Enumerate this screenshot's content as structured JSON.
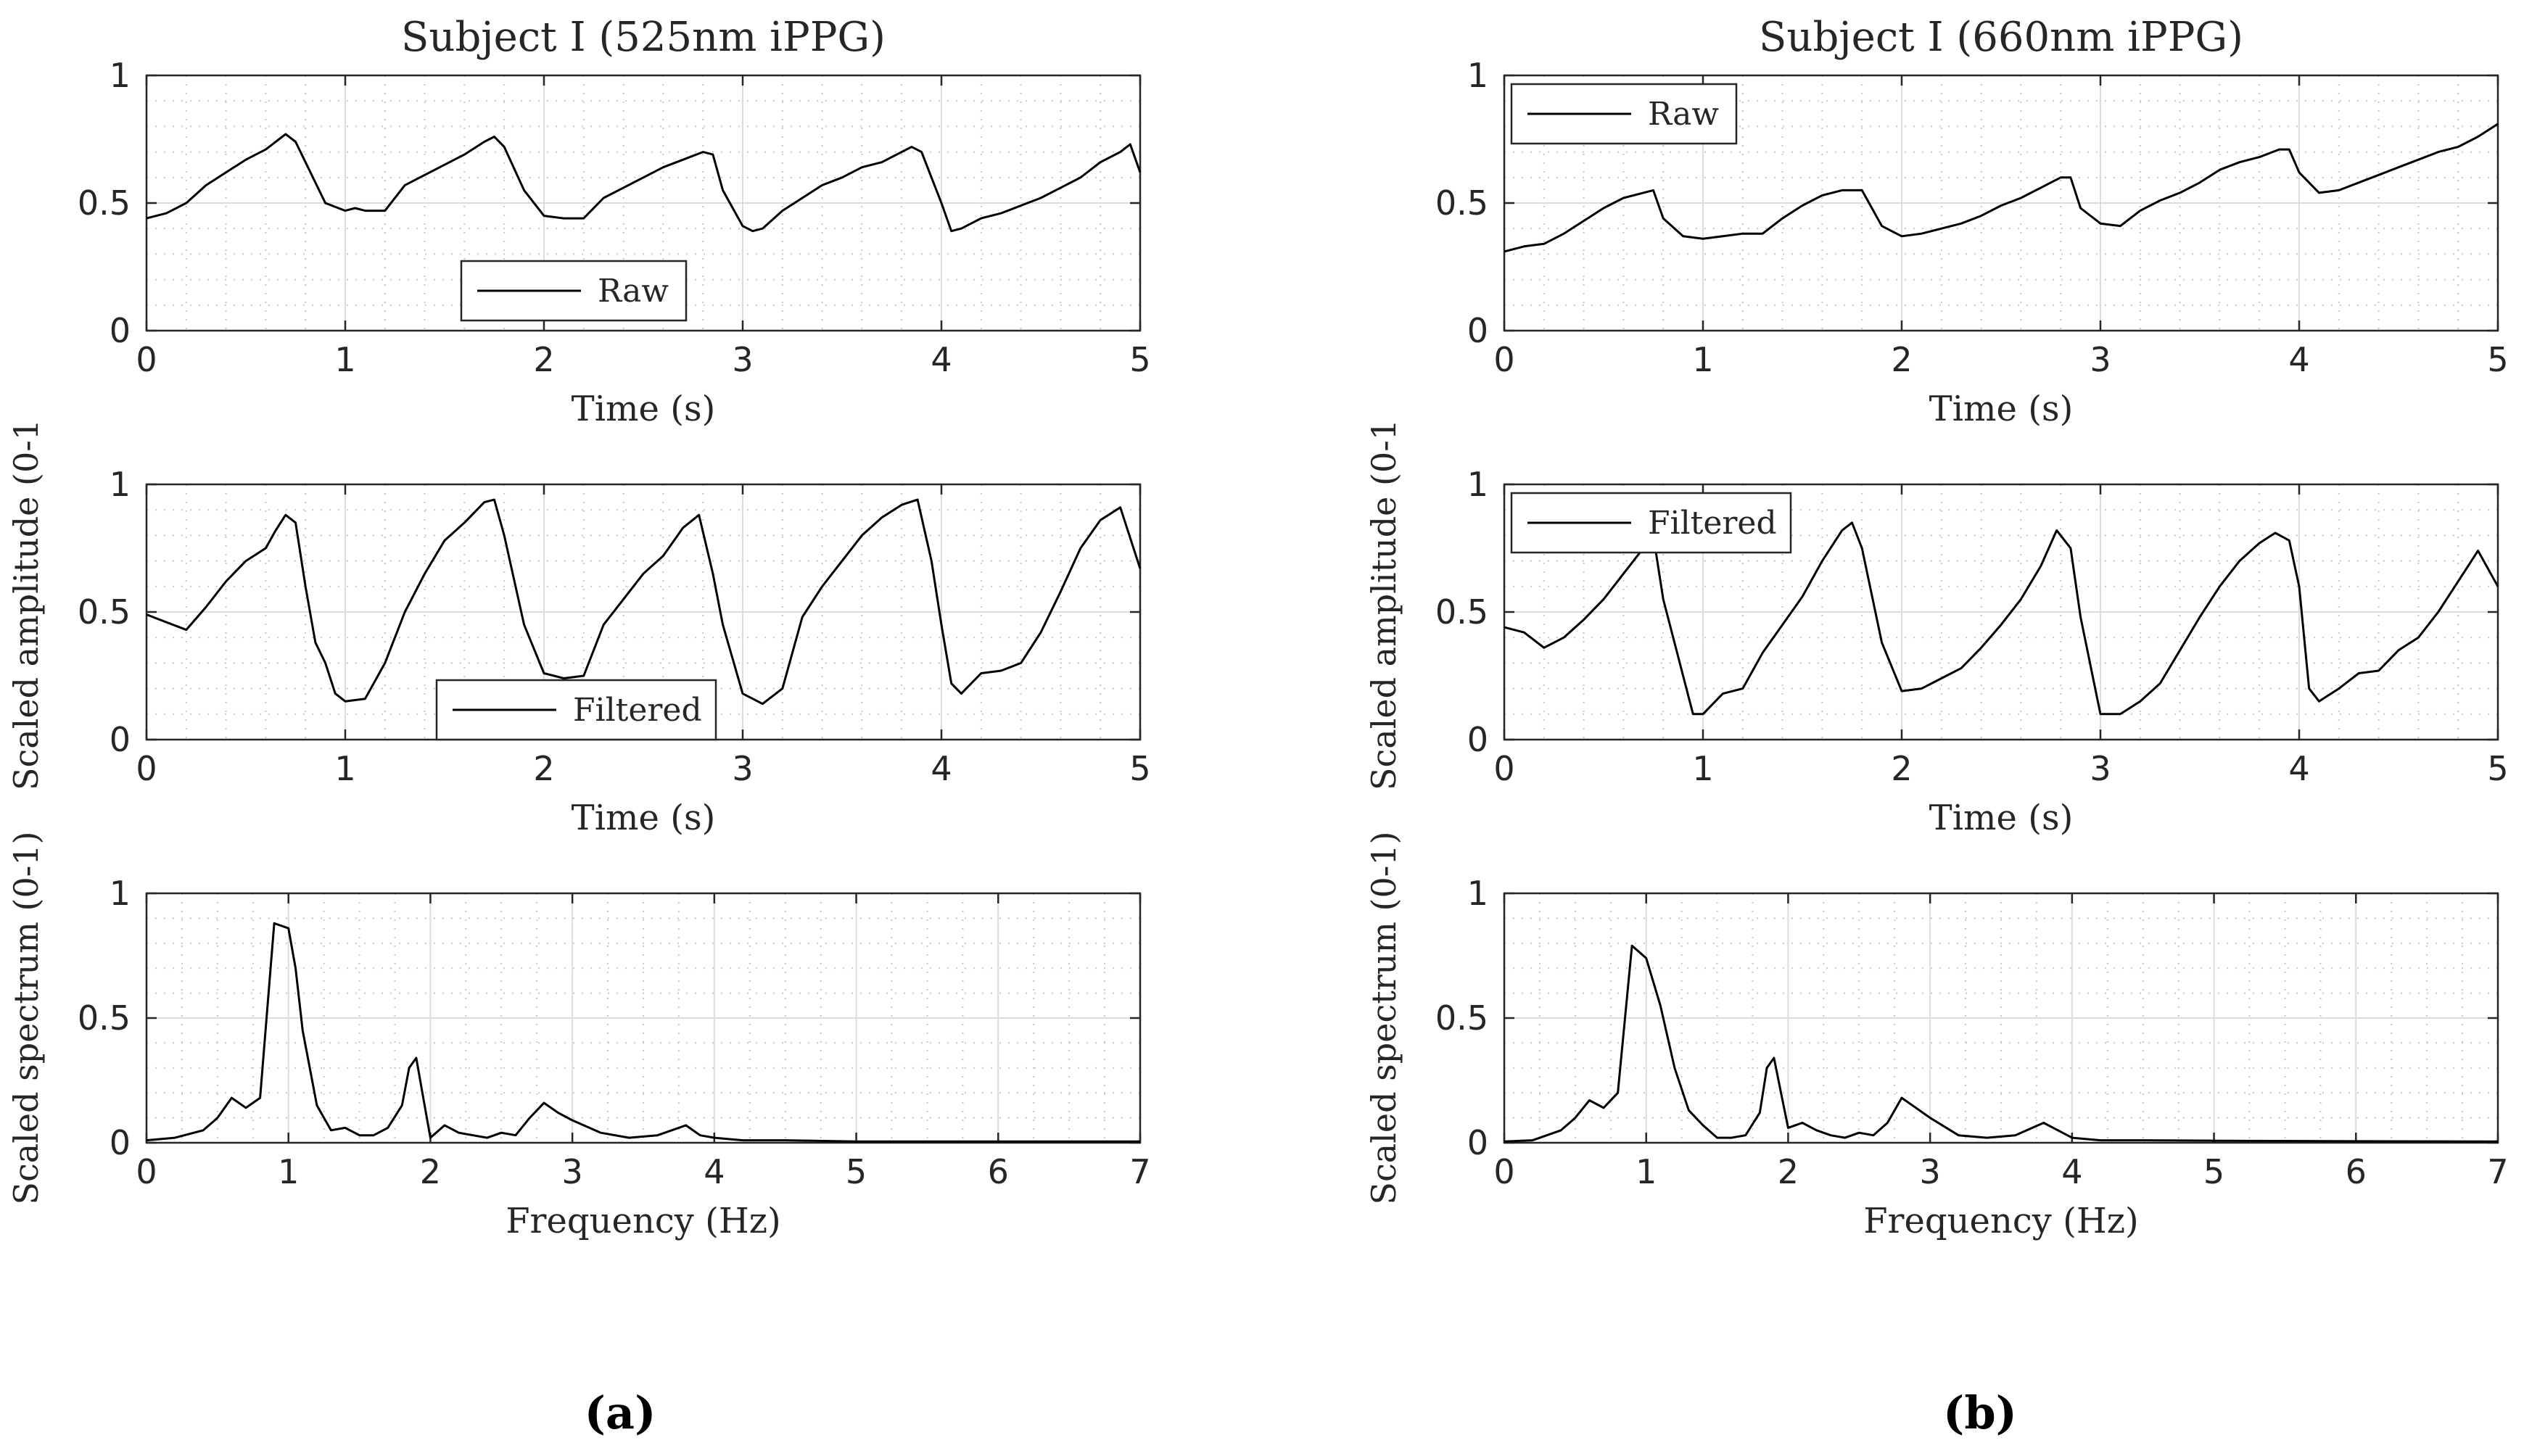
{
  "figure": {
    "caption_a": "(a)",
    "caption_b": "(b)"
  },
  "chart_data": [
    {
      "type": "line",
      "id": "a1",
      "title": "Subject I (525nm iPPG)",
      "xlabel": "Time (s)",
      "ylabel": "",
      "xlim": [
        0,
        5
      ],
      "ylim": [
        0,
        1
      ],
      "xticks": [
        0,
        1,
        2,
        3,
        4,
        5
      ],
      "xtick_labels": [
        "0",
        "1",
        "2",
        "3",
        "4",
        "5"
      ],
      "yticks": [
        0,
        0.5,
        1
      ],
      "ytick_labels": [
        "0",
        "0.5",
        "1"
      ],
      "grid": true,
      "legend": "Raw",
      "legend_position": "bottom-center",
      "series": [
        {
          "name": "Raw",
          "x": [
            0,
            0.1,
            0.2,
            0.3,
            0.4,
            0.5,
            0.6,
            0.7,
            0.75,
            0.8,
            0.9,
            1.0,
            1.05,
            1.1,
            1.2,
            1.3,
            1.4,
            1.5,
            1.6,
            1.7,
            1.75,
            1.8,
            1.9,
            2.0,
            2.1,
            2.2,
            2.3,
            2.4,
            2.5,
            2.6,
            2.7,
            2.8,
            2.85,
            2.9,
            3.0,
            3.05,
            3.1,
            3.2,
            3.3,
            3.4,
            3.5,
            3.6,
            3.7,
            3.8,
            3.85,
            3.9,
            4.0,
            4.05,
            4.1,
            4.2,
            4.3,
            4.4,
            4.5,
            4.6,
            4.7,
            4.8,
            4.9,
            4.95,
            5.0
          ],
          "y": [
            0.44,
            0.46,
            0.5,
            0.57,
            0.62,
            0.67,
            0.71,
            0.77,
            0.74,
            0.66,
            0.5,
            0.47,
            0.48,
            0.47,
            0.47,
            0.57,
            0.61,
            0.65,
            0.69,
            0.74,
            0.76,
            0.72,
            0.55,
            0.45,
            0.44,
            0.44,
            0.52,
            0.56,
            0.6,
            0.64,
            0.67,
            0.7,
            0.69,
            0.55,
            0.41,
            0.39,
            0.4,
            0.47,
            0.52,
            0.57,
            0.6,
            0.64,
            0.66,
            0.7,
            0.72,
            0.7,
            0.5,
            0.39,
            0.4,
            0.44,
            0.46,
            0.49,
            0.52,
            0.56,
            0.6,
            0.66,
            0.7,
            0.73,
            0.62
          ]
        }
      ]
    },
    {
      "type": "line",
      "id": "a2",
      "title": "",
      "xlabel": "Time (s)",
      "ylabel": "Scaled amplitude (0-1",
      "xlim": [
        0,
        5
      ],
      "ylim": [
        0,
        1
      ],
      "xticks": [
        0,
        1,
        2,
        3,
        4,
        5
      ],
      "xtick_labels": [
        "0",
        "1",
        "2",
        "3",
        "4",
        "5"
      ],
      "yticks": [
        0,
        0.5,
        1
      ],
      "ytick_labels": [
        "0",
        "0.5",
        "1"
      ],
      "grid": true,
      "legend": "Filtered",
      "legend_position": "bottom-center",
      "series": [
        {
          "name": "Filtered",
          "x": [
            0,
            0.1,
            0.2,
            0.3,
            0.4,
            0.5,
            0.6,
            0.65,
            0.7,
            0.75,
            0.8,
            0.85,
            0.9,
            0.95,
            1.0,
            1.1,
            1.2,
            1.3,
            1.4,
            1.5,
            1.6,
            1.7,
            1.75,
            1.8,
            1.9,
            2.0,
            2.1,
            2.2,
            2.3,
            2.4,
            2.5,
            2.6,
            2.7,
            2.78,
            2.85,
            2.9,
            3.0,
            3.1,
            3.2,
            3.3,
            3.4,
            3.5,
            3.6,
            3.7,
            3.8,
            3.88,
            3.95,
            4.0,
            4.05,
            4.1,
            4.2,
            4.3,
            4.4,
            4.5,
            4.6,
            4.7,
            4.8,
            4.9,
            5.0
          ],
          "y": [
            0.49,
            0.46,
            0.43,
            0.52,
            0.62,
            0.7,
            0.75,
            0.82,
            0.88,
            0.85,
            0.6,
            0.38,
            0.3,
            0.18,
            0.15,
            0.16,
            0.3,
            0.5,
            0.65,
            0.78,
            0.85,
            0.93,
            0.94,
            0.8,
            0.45,
            0.26,
            0.24,
            0.25,
            0.45,
            0.55,
            0.65,
            0.72,
            0.83,
            0.88,
            0.65,
            0.45,
            0.18,
            0.14,
            0.2,
            0.48,
            0.6,
            0.7,
            0.8,
            0.87,
            0.92,
            0.94,
            0.7,
            0.45,
            0.22,
            0.18,
            0.26,
            0.27,
            0.3,
            0.42,
            0.58,
            0.75,
            0.86,
            0.91,
            0.67
          ]
        }
      ]
    },
    {
      "type": "line",
      "id": "a3",
      "title": "",
      "xlabel": "Frequency (Hz)",
      "ylabel": "Scaled spectrum (0-1)",
      "xlim": [
        0,
        7
      ],
      "ylim": [
        0,
        1
      ],
      "xticks": [
        0,
        1,
        2,
        3,
        4,
        5,
        6,
        7
      ],
      "xtick_labels": [
        "0",
        "1",
        "2",
        "3",
        "4",
        "5",
        "6",
        "7"
      ],
      "yticks": [
        0,
        0.5,
        1
      ],
      "ytick_labels": [
        "0",
        "0.5",
        "1"
      ],
      "grid": true,
      "legend": "",
      "legend_position": "none",
      "series": [
        {
          "name": "Spectrum",
          "x": [
            0,
            0.2,
            0.4,
            0.5,
            0.6,
            0.7,
            0.8,
            0.9,
            1.0,
            1.05,
            1.1,
            1.2,
            1.3,
            1.4,
            1.5,
            1.6,
            1.7,
            1.8,
            1.85,
            1.9,
            1.95,
            2.0,
            2.1,
            2.2,
            2.3,
            2.4,
            2.5,
            2.6,
            2.7,
            2.8,
            2.9,
            3.0,
            3.2,
            3.4,
            3.6,
            3.8,
            3.9,
            4.0,
            4.2,
            4.5,
            5.0,
            6.0,
            7.0
          ],
          "y": [
            0.01,
            0.02,
            0.05,
            0.1,
            0.18,
            0.14,
            0.18,
            0.88,
            0.86,
            0.7,
            0.45,
            0.15,
            0.05,
            0.06,
            0.03,
            0.03,
            0.06,
            0.15,
            0.3,
            0.34,
            0.18,
            0.02,
            0.07,
            0.04,
            0.03,
            0.02,
            0.04,
            0.03,
            0.1,
            0.16,
            0.12,
            0.09,
            0.04,
            0.02,
            0.03,
            0.07,
            0.03,
            0.02,
            0.01,
            0.01,
            0.005,
            0.005,
            0.005
          ]
        }
      ]
    },
    {
      "type": "line",
      "id": "b1",
      "title": "Subject I (660nm iPPG)",
      "xlabel": "Time (s)",
      "ylabel": "",
      "xlim": [
        0,
        5
      ],
      "ylim": [
        0,
        1
      ],
      "xticks": [
        0,
        1,
        2,
        3,
        4,
        5
      ],
      "xtick_labels": [
        "0",
        "1",
        "2",
        "3",
        "4",
        "5"
      ],
      "yticks": [
        0,
        0.5,
        1
      ],
      "ytick_labels": [
        "0",
        "0.5",
        "1"
      ],
      "grid": true,
      "legend": "Raw",
      "legend_position": "top-left",
      "series": [
        {
          "name": "Raw",
          "x": [
            0,
            0.1,
            0.2,
            0.3,
            0.4,
            0.5,
            0.6,
            0.7,
            0.75,
            0.8,
            0.9,
            1.0,
            1.1,
            1.2,
            1.3,
            1.4,
            1.5,
            1.6,
            1.7,
            1.8,
            1.85,
            1.9,
            2.0,
            2.1,
            2.2,
            2.3,
            2.4,
            2.5,
            2.6,
            2.7,
            2.8,
            2.85,
            2.9,
            3.0,
            3.1,
            3.2,
            3.3,
            3.4,
            3.5,
            3.6,
            3.7,
            3.8,
            3.9,
            3.95,
            4.0,
            4.1,
            4.2,
            4.3,
            4.4,
            4.5,
            4.6,
            4.7,
            4.8,
            4.9,
            5.0
          ],
          "y": [
            0.31,
            0.33,
            0.34,
            0.38,
            0.43,
            0.48,
            0.52,
            0.54,
            0.55,
            0.44,
            0.37,
            0.36,
            0.37,
            0.38,
            0.38,
            0.44,
            0.49,
            0.53,
            0.55,
            0.55,
            0.48,
            0.41,
            0.37,
            0.38,
            0.4,
            0.42,
            0.45,
            0.49,
            0.52,
            0.56,
            0.6,
            0.6,
            0.48,
            0.42,
            0.41,
            0.47,
            0.51,
            0.54,
            0.58,
            0.63,
            0.66,
            0.68,
            0.71,
            0.71,
            0.62,
            0.54,
            0.55,
            0.58,
            0.61,
            0.64,
            0.67,
            0.7,
            0.72,
            0.76,
            0.81
          ]
        }
      ]
    },
    {
      "type": "line",
      "id": "b2",
      "title": "",
      "xlabel": "Time (s)",
      "ylabel": "Scaled amplitude (0-1",
      "xlim": [
        0,
        5
      ],
      "ylim": [
        0,
        1
      ],
      "xticks": [
        0,
        1,
        2,
        3,
        4,
        5
      ],
      "xtick_labels": [
        "0",
        "1",
        "2",
        "3",
        "4",
        "5"
      ],
      "yticks": [
        0,
        0.5,
        1
      ],
      "ytick_labels": [
        "0",
        "0.5",
        "1"
      ],
      "grid": true,
      "legend": "Filtered",
      "legend_position": "top-left",
      "series": [
        {
          "name": "Filtered",
          "x": [
            0,
            0.1,
            0.2,
            0.3,
            0.4,
            0.5,
            0.6,
            0.7,
            0.75,
            0.8,
            0.9,
            0.95,
            1.0,
            1.1,
            1.2,
            1.3,
            1.4,
            1.5,
            1.6,
            1.7,
            1.75,
            1.8,
            1.9,
            2.0,
            2.1,
            2.2,
            2.3,
            2.4,
            2.5,
            2.6,
            2.7,
            2.78,
            2.85,
            2.9,
            3.0,
            3.1,
            3.2,
            3.3,
            3.4,
            3.5,
            3.6,
            3.7,
            3.8,
            3.88,
            3.95,
            4.0,
            4.05,
            4.1,
            4.2,
            4.3,
            4.4,
            4.5,
            4.6,
            4.7,
            4.8,
            4.9,
            5.0
          ],
          "y": [
            0.44,
            0.42,
            0.36,
            0.4,
            0.47,
            0.55,
            0.65,
            0.75,
            0.8,
            0.55,
            0.25,
            0.1,
            0.1,
            0.18,
            0.2,
            0.34,
            0.45,
            0.56,
            0.7,
            0.82,
            0.85,
            0.75,
            0.38,
            0.19,
            0.2,
            0.24,
            0.28,
            0.36,
            0.45,
            0.55,
            0.68,
            0.82,
            0.75,
            0.48,
            0.1,
            0.1,
            0.15,
            0.22,
            0.35,
            0.48,
            0.6,
            0.7,
            0.77,
            0.81,
            0.78,
            0.6,
            0.2,
            0.15,
            0.2,
            0.26,
            0.27,
            0.35,
            0.4,
            0.5,
            0.62,
            0.74,
            0.6
          ]
        }
      ]
    },
    {
      "type": "line",
      "id": "b3",
      "title": "",
      "xlabel": "Frequency (Hz)",
      "ylabel": "Scaled spectrum (0-1)",
      "xlim": [
        0,
        7
      ],
      "ylim": [
        0,
        1
      ],
      "xticks": [
        0,
        1,
        2,
        3,
        4,
        5,
        6,
        7
      ],
      "xtick_labels": [
        "0",
        "1",
        "2",
        "3",
        "4",
        "5",
        "6",
        "7"
      ],
      "yticks": [
        0,
        0.5,
        1
      ],
      "ytick_labels": [
        "0",
        "0.5",
        "1"
      ],
      "grid": true,
      "legend": "",
      "legend_position": "none",
      "series": [
        {
          "name": "Spectrum",
          "x": [
            0,
            0.2,
            0.4,
            0.5,
            0.6,
            0.7,
            0.8,
            0.9,
            1.0,
            1.1,
            1.2,
            1.3,
            1.4,
            1.5,
            1.6,
            1.7,
            1.8,
            1.85,
            1.9,
            1.95,
            2.0,
            2.1,
            2.2,
            2.3,
            2.4,
            2.5,
            2.6,
            2.7,
            2.8,
            2.9,
            3.0,
            3.2,
            3.4,
            3.6,
            3.8,
            3.9,
            4.0,
            4.2,
            4.5,
            5.0,
            6.0,
            7.0
          ],
          "y": [
            0.005,
            0.01,
            0.05,
            0.1,
            0.17,
            0.14,
            0.2,
            0.79,
            0.74,
            0.55,
            0.3,
            0.13,
            0.07,
            0.02,
            0.02,
            0.03,
            0.12,
            0.3,
            0.34,
            0.2,
            0.06,
            0.08,
            0.05,
            0.03,
            0.02,
            0.04,
            0.03,
            0.08,
            0.18,
            0.14,
            0.1,
            0.03,
            0.02,
            0.03,
            0.08,
            0.05,
            0.02,
            0.01,
            0.01,
            0.008,
            0.006,
            0.005
          ]
        }
      ]
    }
  ]
}
